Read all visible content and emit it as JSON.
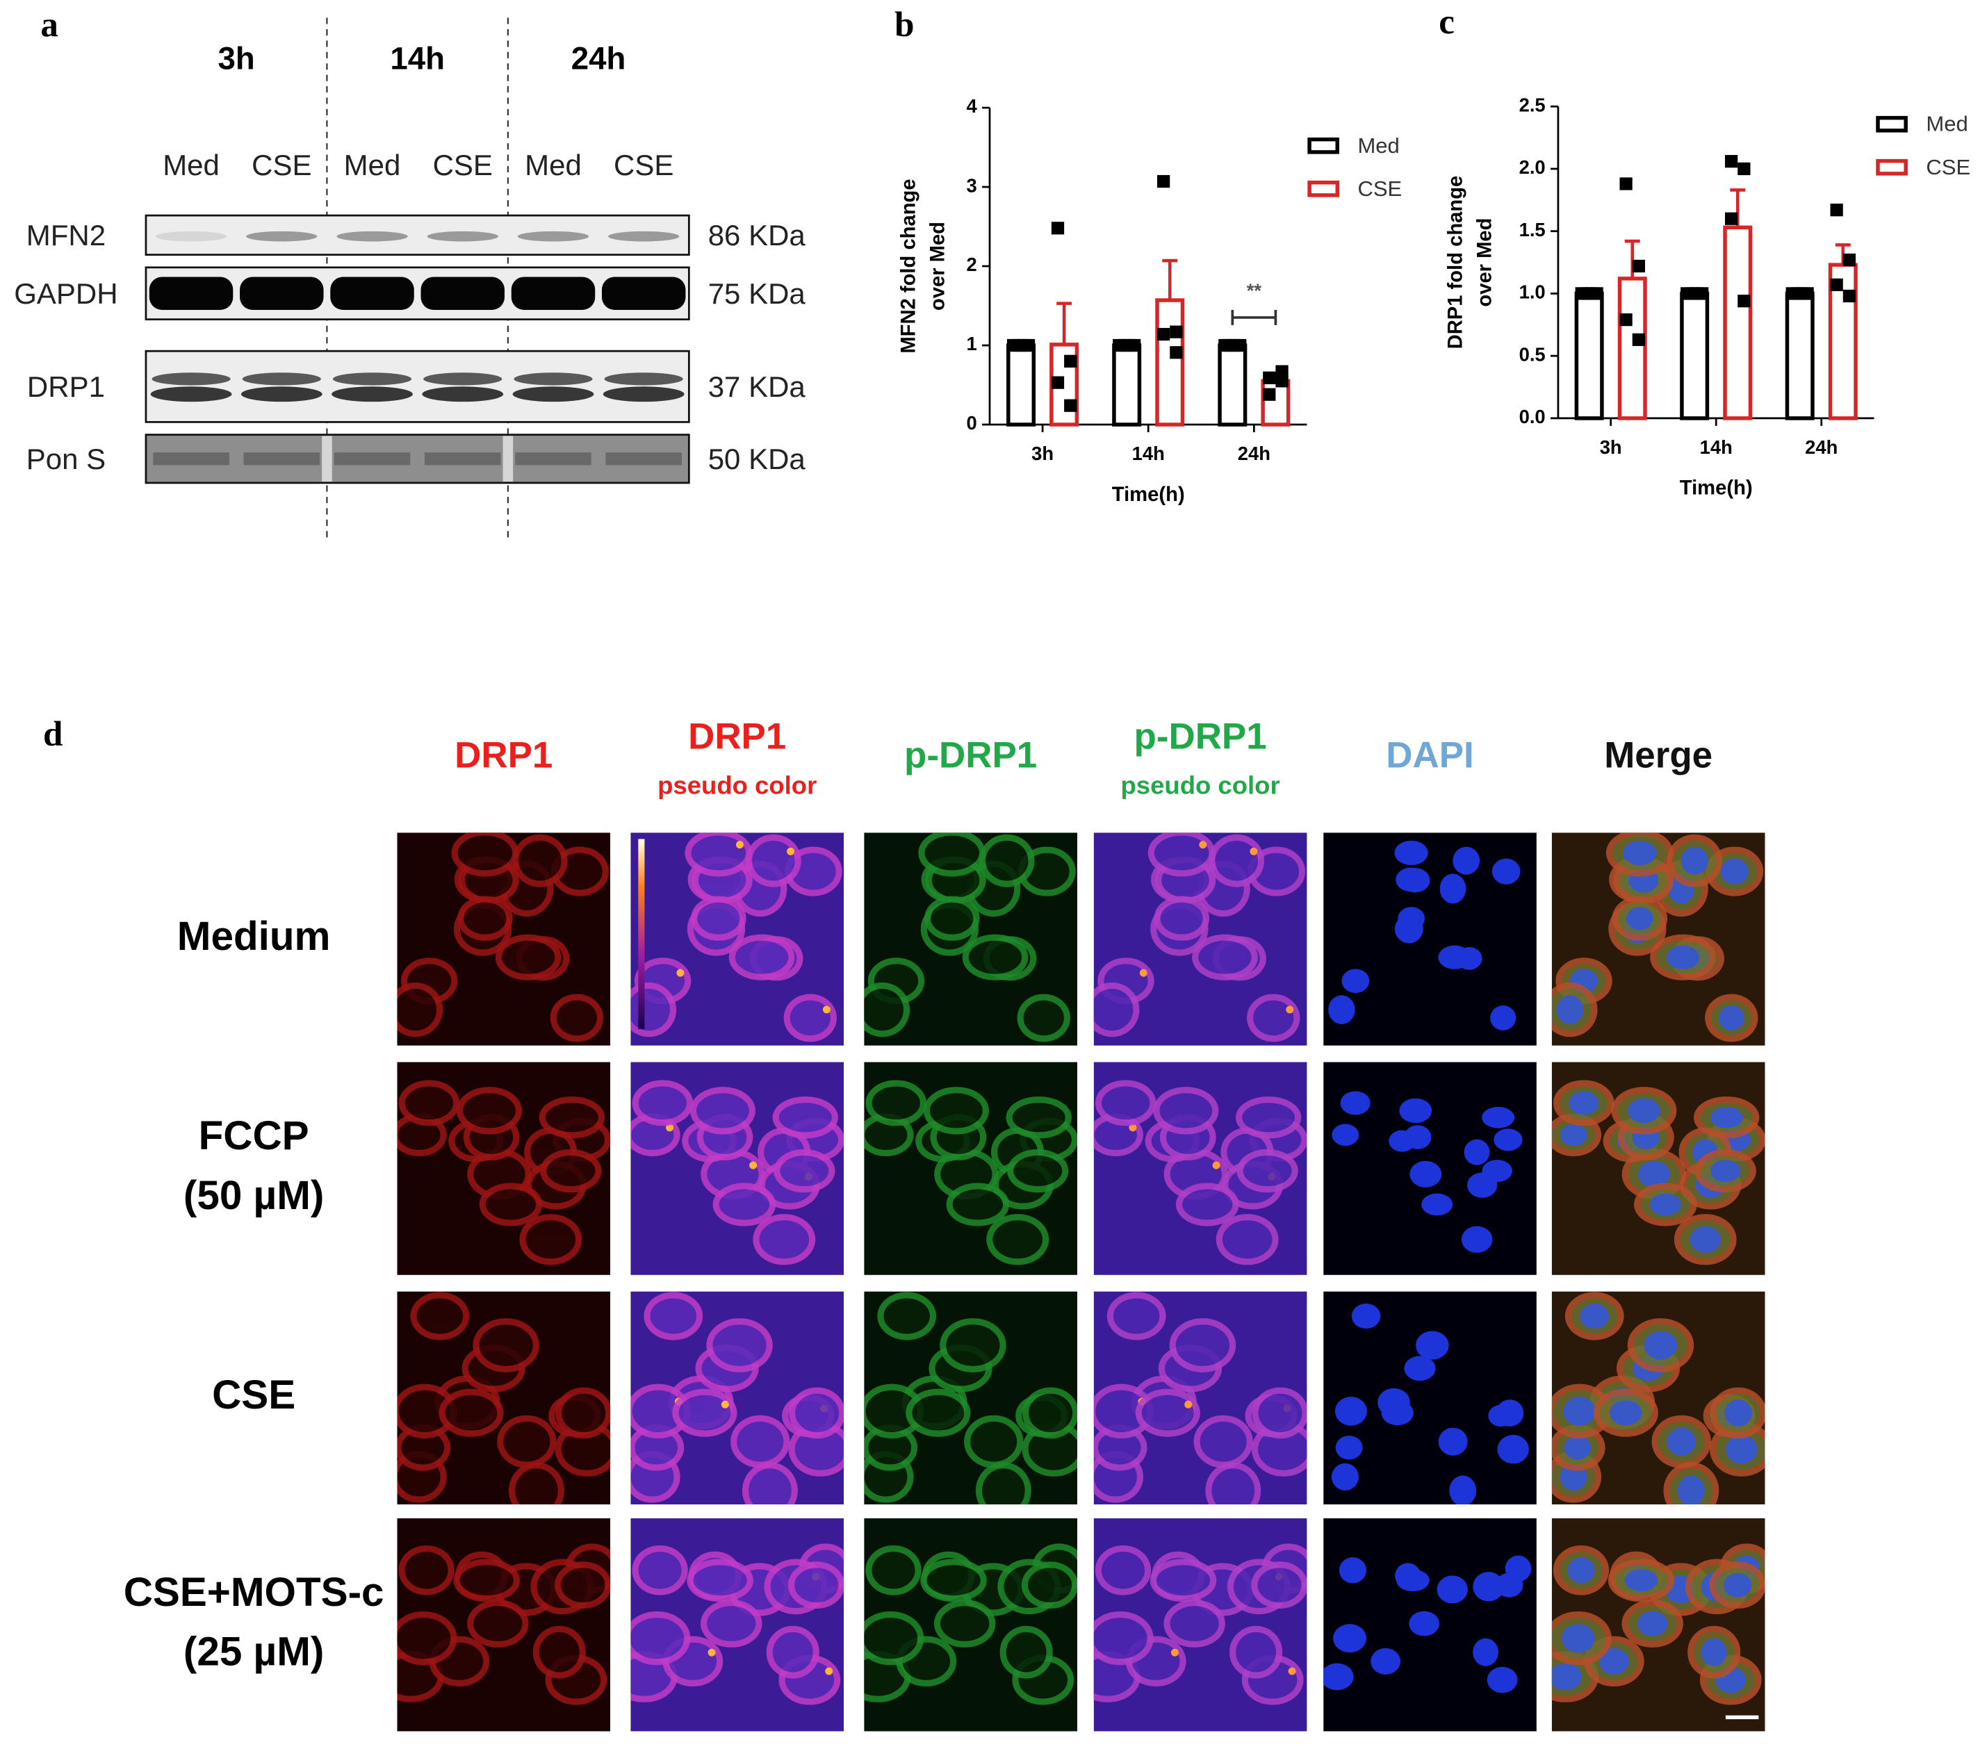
{
  "panel_a": {
    "label": "a",
    "timepoints": [
      "3h",
      "14h",
      "24h"
    ],
    "lanes": [
      "Med",
      "CSE",
      "Med",
      "CSE",
      "Med",
      "CSE"
    ],
    "blots": [
      {
        "protein": "MFN2",
        "size": "86 KDa"
      },
      {
        "protein": "GAPDH",
        "size": "75 KDa"
      },
      {
        "protein": "DRP1",
        "size": "37 KDa"
      },
      {
        "protein": "Pon S",
        "size": "50 KDa"
      }
    ]
  },
  "chart_data": [
    {
      "type": "bar",
      "label": "b",
      "ylabel": [
        "MFN2 fold change",
        "over Med"
      ],
      "xlabel": "Time(h)",
      "categories": [
        "3h",
        "14h",
        "24h"
      ],
      "ylim": [
        0,
        4
      ],
      "yticks": [
        0,
        1,
        2,
        3,
        4
      ],
      "legend": "upper right",
      "series": [
        {
          "name": "Med",
          "color": "#000000",
          "values": [
            1,
            1,
            1
          ],
          "points": [
            [
              1,
              1,
              1,
              1
            ],
            [
              1,
              1,
              1,
              1
            ],
            [
              1,
              1,
              1,
              1
            ]
          ]
        },
        {
          "name": "CSE",
          "color": "#d62728",
          "values": [
            1.01,
            1.57,
            0.55
          ],
          "errors": [
            0.52,
            0.5,
            0.08
          ],
          "points": [
            [
              2.48,
              0.8,
              0.53,
              0.24
            ],
            [
              3.07,
              1.17,
              1.14,
              0.91
            ],
            [
              0.59,
              0.67,
              0.38,
              0.55
            ]
          ]
        }
      ],
      "annotations": [
        {
          "text": "**",
          "category": "24h"
        }
      ]
    },
    {
      "type": "bar",
      "label": "c",
      "ylabel": [
        "DRP1 fold change",
        "over Med"
      ],
      "xlabel": "Time(h)",
      "categories": [
        "3h",
        "14h",
        "24h"
      ],
      "ylim": [
        0,
        2.5
      ],
      "yticks": [
        {
          "value": 0,
          "label": "0.0"
        },
        {
          "value": 0.5,
          "label": "0.5"
        },
        {
          "value": 1,
          "label": "1.0"
        },
        {
          "value": 1.5,
          "label": "1.5"
        },
        {
          "value": 2,
          "label": "2.0"
        },
        {
          "value": 2.5,
          "label": "2.5"
        }
      ],
      "legend": "upper right",
      "series": [
        {
          "name": "Med",
          "color": "#000000",
          "values": [
            1,
            1,
            1
          ],
          "points": [
            [
              1,
              1,
              1,
              1
            ],
            [
              1,
              1,
              1,
              1
            ],
            [
              1,
              1,
              1,
              1
            ]
          ]
        },
        {
          "name": "CSE",
          "color": "#d62728",
          "values": [
            1.12,
            1.53,
            1.23
          ],
          "errors": [
            0.3,
            0.3,
            0.16
          ],
          "points": [
            [
              1.88,
              1.22,
              0.79,
              0.63
            ],
            [
              2.06,
              2.0,
              1.6,
              0.94
            ],
            [
              1.67,
              1.27,
              1.07,
              0.98
            ]
          ]
        }
      ]
    }
  ],
  "panel_d": {
    "label": "d",
    "columns": [
      {
        "title": "DRP1"
      },
      {
        "title": "DRP1",
        "subtitle": "pseudo color"
      },
      {
        "title": "p-DRP1"
      },
      {
        "title": "p-DRP1",
        "subtitle": "pseudo color"
      },
      {
        "title": "DAPI"
      },
      {
        "title": "Merge"
      }
    ],
    "rows": [
      [
        "Medium"
      ],
      [
        "FCCP",
        "(50 µM)"
      ],
      [
        "CSE"
      ],
      [
        "CSE+MOTS-c",
        "(25 µM)"
      ]
    ]
  }
}
